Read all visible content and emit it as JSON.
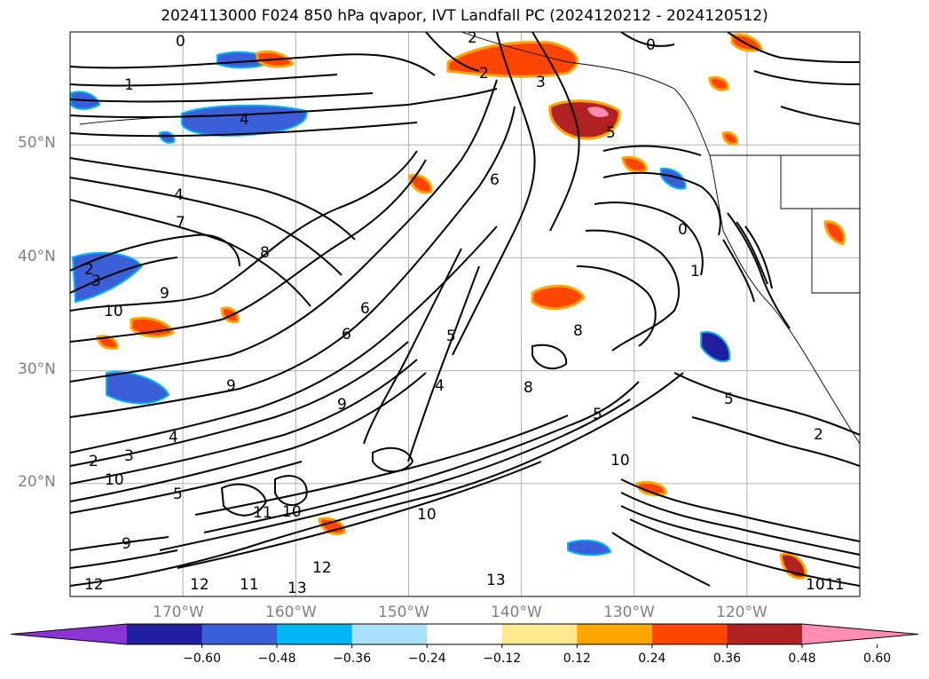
{
  "title": "2024113000 F024 850 hPa qvapor, IVT Landfall PC (2024120212 - 2024120512)",
  "map": {
    "lon_range": [
      -180,
      -110
    ],
    "lat_range": [
      10,
      60
    ],
    "lat_ticks": [
      {
        "value": 50,
        "label": "50°N"
      },
      {
        "value": 40,
        "label": "40°N"
      },
      {
        "value": 30,
        "label": "30°N"
      },
      {
        "value": 20,
        "label": "20°N"
      }
    ],
    "lon_ticks": [
      {
        "value": -170,
        "label": "170°W"
      },
      {
        "value": -160,
        "label": "160°W"
      },
      {
        "value": -150,
        "label": "150°W"
      },
      {
        "value": -140,
        "label": "140°W"
      },
      {
        "value": -130,
        "label": "130°W"
      },
      {
        "value": -120,
        "label": "120°W"
      }
    ],
    "gridlines": true,
    "contour_labels": [
      "0",
      "1",
      "2",
      "3",
      "4",
      "5",
      "6",
      "7",
      "8",
      "9",
      "10",
      "11",
      "12",
      "13"
    ]
  },
  "colorbar": {
    "ticks": [
      "−0.60",
      "−0.48",
      "−0.36",
      "−0.24",
      "−0.12",
      "0.12",
      "0.24",
      "0.36",
      "0.48",
      "0.60"
    ],
    "colors": [
      "#8a35d3",
      "#1f1fa0",
      "#3a5fd9",
      "#00b6f5",
      "#a9e2fb",
      "#ffffff",
      "#ffe98f",
      "#ffa500",
      "#ff4500",
      "#b22222",
      "#ff8db4"
    ],
    "extend": "both"
  }
}
